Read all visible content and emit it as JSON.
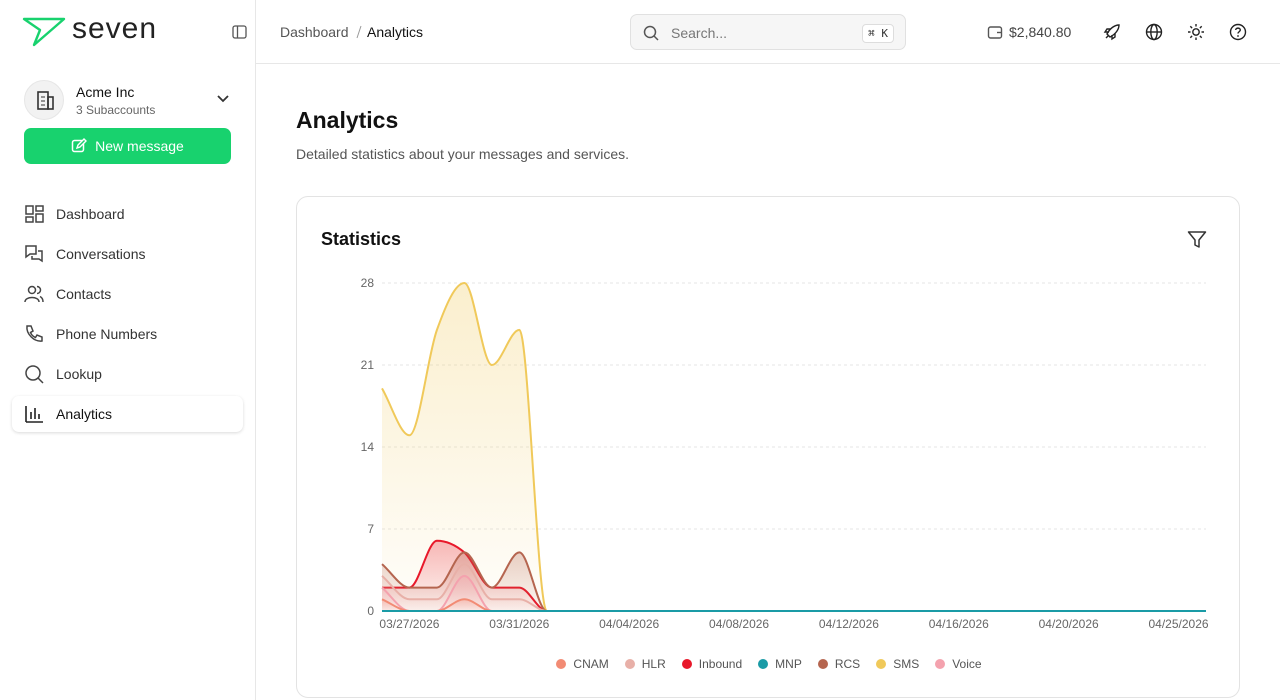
{
  "sidebar": {
    "brand": "seven",
    "account": {
      "name": "Acme Inc",
      "subtitle": "3 Subaccounts"
    },
    "new_message": "New message",
    "nav": [
      "Dashboard",
      "Conversations",
      "Contacts",
      "Phone Numbers",
      "Lookup",
      "Analytics"
    ]
  },
  "header": {
    "breadcrumb": [
      "Dashboard",
      "Analytics"
    ],
    "search_placeholder": "Search...",
    "shortcut": "⌘ K",
    "balance": "$2,840.80"
  },
  "page": {
    "title": "Analytics",
    "subtitle": "Detailed statistics about your messages and services."
  },
  "chart_data": {
    "type": "area",
    "title": "Statistics",
    "categories": [
      null,
      "03/27/2026",
      null,
      null,
      null,
      "03/31/2026",
      null,
      null,
      null,
      "04/04/2026",
      null,
      null,
      null,
      "04/08/2026",
      null,
      null,
      null,
      "04/12/2026",
      null,
      null,
      null,
      "04/16/2026",
      null,
      null,
      null,
      "04/20/2026",
      null,
      null,
      null,
      "04/25/2026",
      null
    ],
    "series": [
      {
        "name": "CNAM",
        "color": "#f28b74",
        "values": [
          1,
          0,
          0,
          1,
          0,
          0,
          0,
          0,
          0,
          0,
          0,
          0,
          0,
          0,
          0,
          0,
          0,
          0,
          0,
          0,
          0,
          0,
          0,
          0,
          0,
          0,
          0,
          0,
          0,
          0,
          0
        ]
      },
      {
        "name": "HLR",
        "color": "#e8b0a8",
        "values": [
          3,
          1,
          1,
          4,
          1,
          1,
          0,
          0,
          0,
          0,
          0,
          0,
          0,
          0,
          0,
          0,
          0,
          0,
          0,
          0,
          0,
          0,
          0,
          0,
          0,
          0,
          0,
          0,
          0,
          0,
          0
        ]
      },
      {
        "name": "Inbound",
        "color": "#e8182a",
        "values": [
          2,
          2,
          6,
          5,
          2,
          2,
          0,
          0,
          0,
          0,
          0,
          0,
          0,
          0,
          0,
          0,
          0,
          0,
          0,
          0,
          0,
          0,
          0,
          0,
          0,
          0,
          0,
          0,
          0,
          0,
          0
        ]
      },
      {
        "name": "MNP",
        "color": "#1a9ba6",
        "values": [
          0,
          0,
          0,
          0,
          0,
          0,
          0,
          0,
          0,
          0,
          0,
          0,
          0,
          0,
          0,
          0,
          0,
          0,
          0,
          0,
          0,
          0,
          0,
          0,
          0,
          0,
          0,
          0,
          0,
          0,
          0
        ]
      },
      {
        "name": "RCS",
        "color": "#b5654f",
        "values": [
          4,
          2,
          2,
          5,
          2,
          5,
          0,
          0,
          0,
          0,
          0,
          0,
          0,
          0,
          0,
          0,
          0,
          0,
          0,
          0,
          0,
          0,
          0,
          0,
          0,
          0,
          0,
          0,
          0,
          0,
          0
        ]
      },
      {
        "name": "SMS",
        "color": "#f0c95a",
        "values": [
          19,
          15,
          24,
          28,
          21,
          24,
          0,
          0,
          0,
          0,
          0,
          0,
          0,
          0,
          0,
          0,
          0,
          0,
          0,
          0,
          0,
          0,
          0,
          0,
          0,
          0,
          0,
          0,
          0,
          0,
          0
        ]
      },
      {
        "name": "Voice",
        "color": "#f4a2ae",
        "values": [
          2,
          0,
          0,
          3,
          0,
          0,
          0,
          0,
          0,
          0,
          0,
          0,
          0,
          0,
          0,
          0,
          0,
          0,
          0,
          0,
          0,
          0,
          0,
          0,
          0,
          0,
          0,
          0,
          0,
          0,
          0
        ]
      }
    ],
    "ylim": [
      0,
      28
    ],
    "yticks": [
      0,
      7,
      14,
      21,
      28
    ],
    "grid": true
  }
}
